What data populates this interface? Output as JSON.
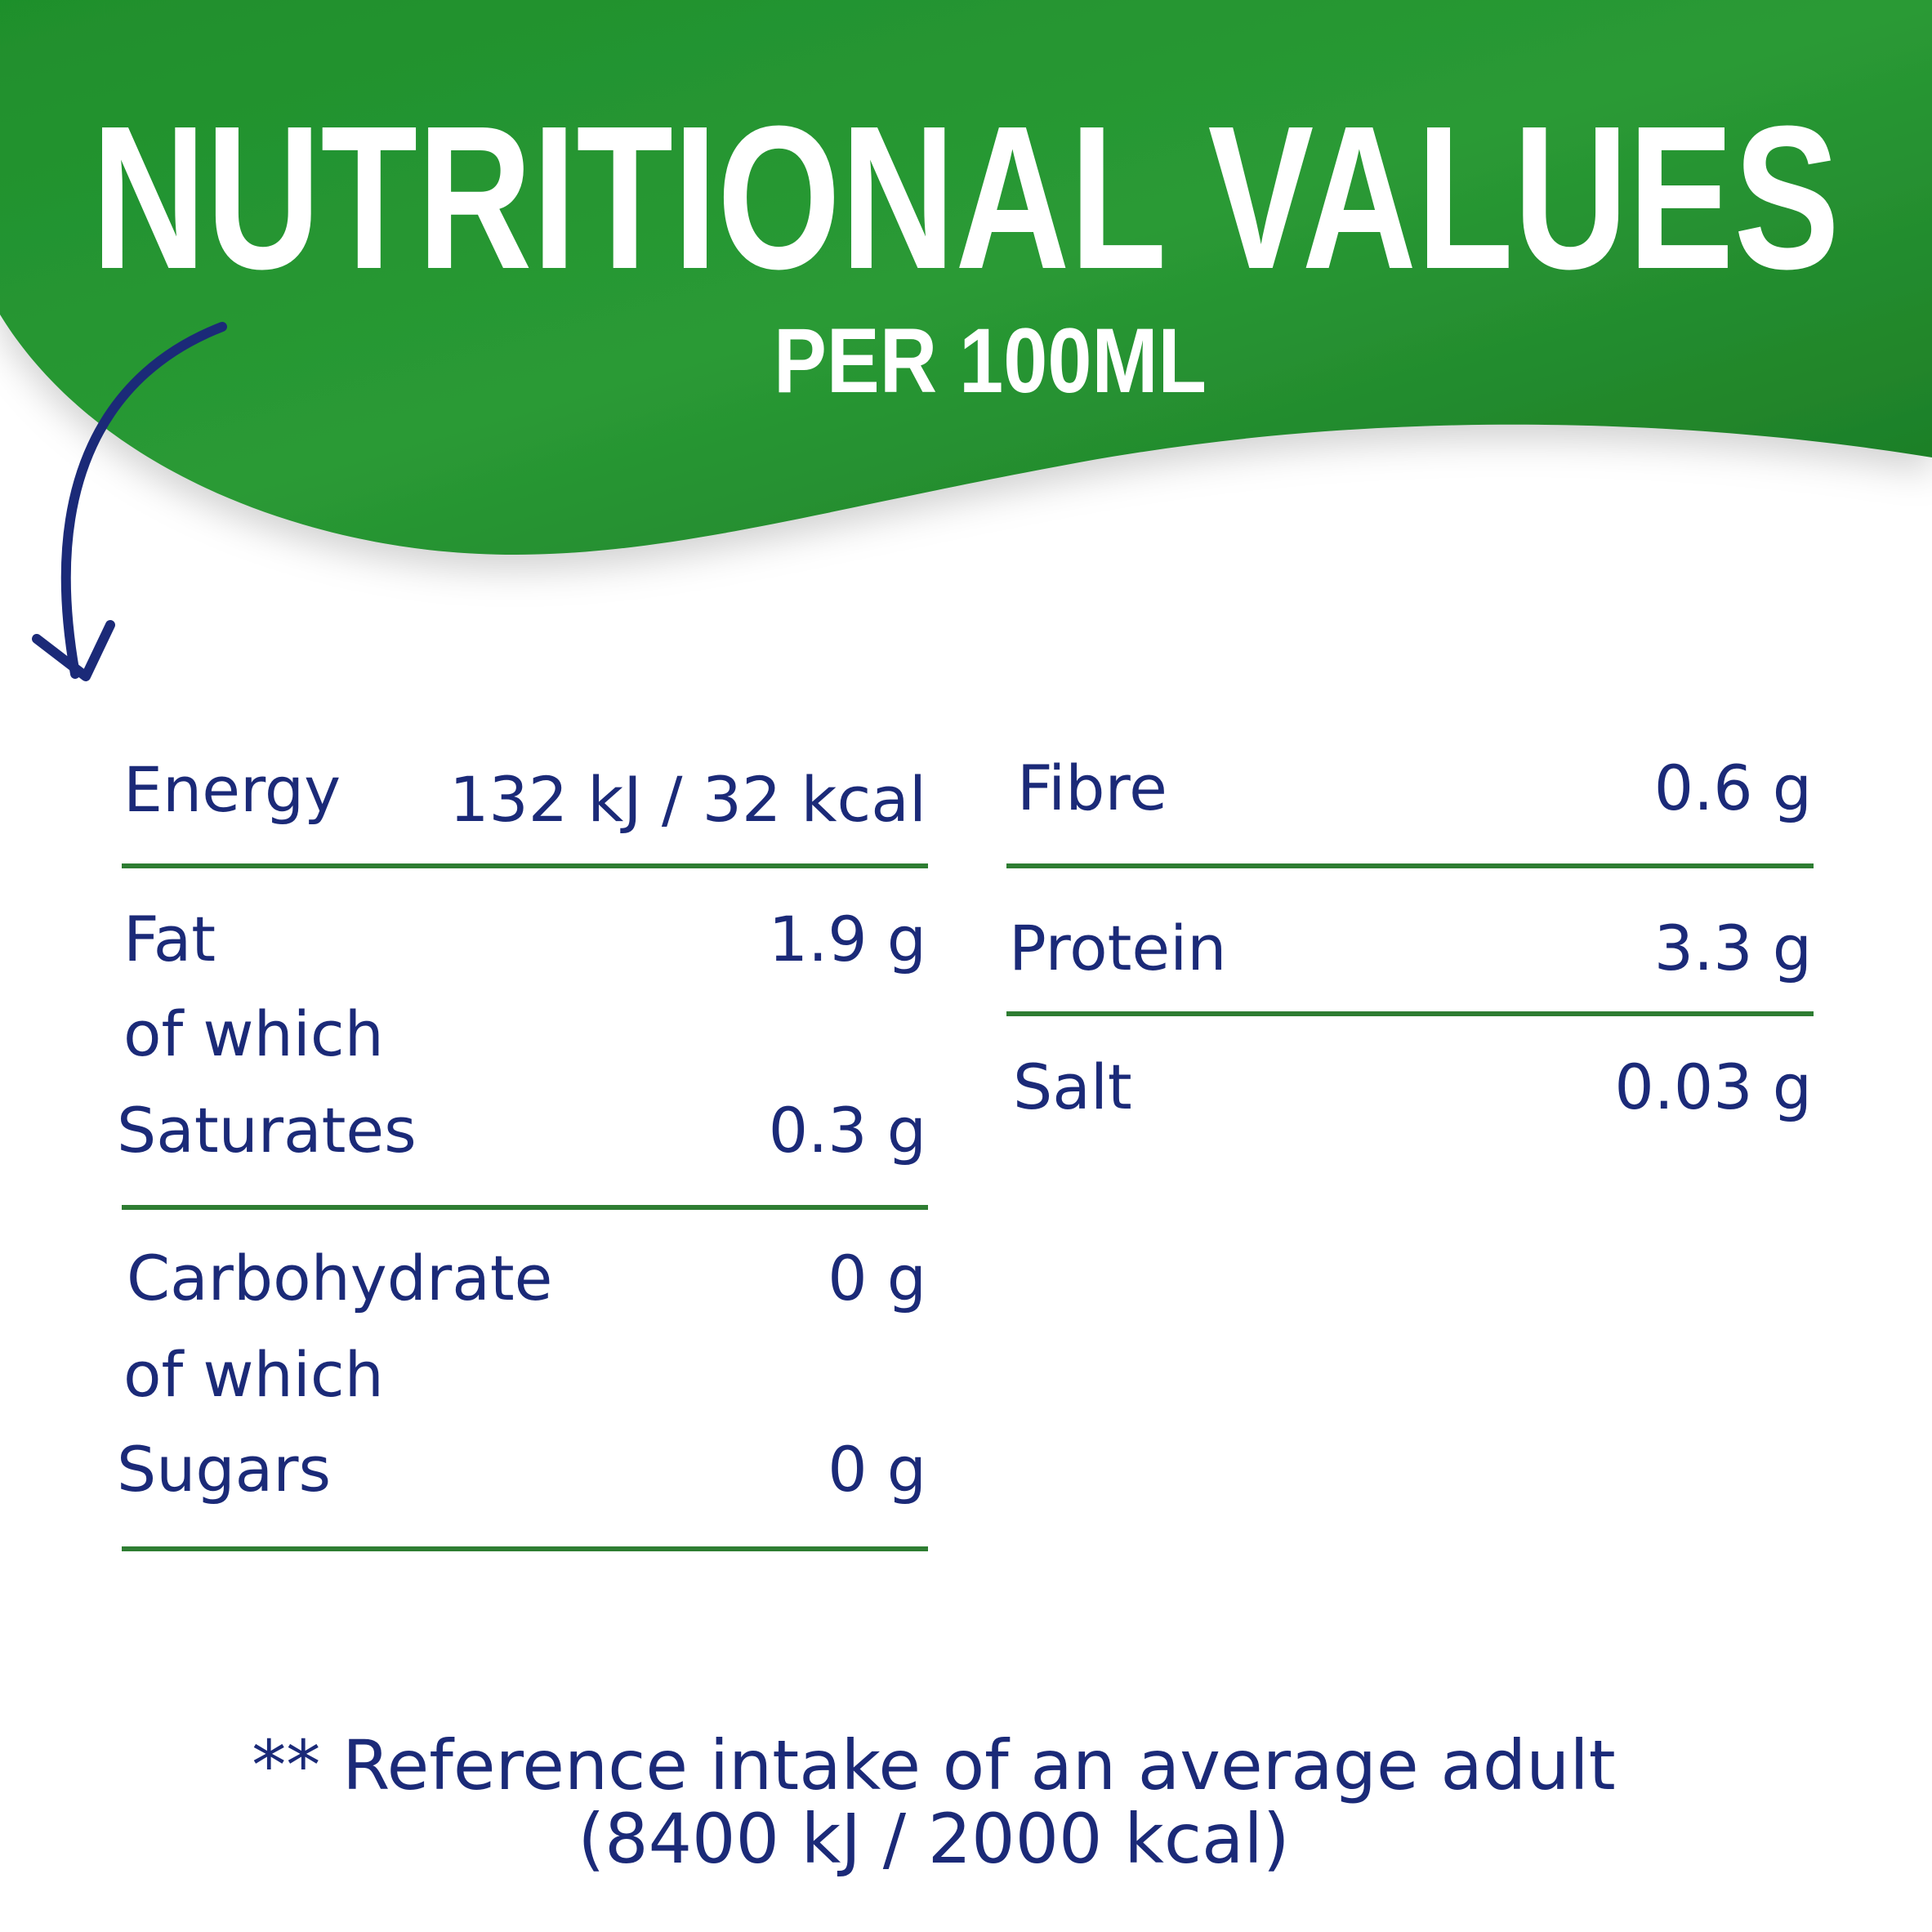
{
  "header": {
    "title": "NUTRITIONAL VALUES",
    "subtitle": "PER 100ML"
  },
  "left": [
    {
      "label": "Energy",
      "value": "132 kJ / 32 kcal"
    },
    {
      "label": "Fat",
      "value": "1.9 g"
    },
    {
      "label": "of which"
    },
    {
      "label": "Saturates",
      "value": "0.3 g"
    },
    {
      "label": "Carbohydrate",
      "value": "0 g"
    },
    {
      "label": "of which"
    },
    {
      "label": "Sugars",
      "value": "0 g"
    }
  ],
  "right": [
    {
      "label": "Fibre",
      "value": "0.6 g"
    },
    {
      "label": "Protein",
      "value": "3.3 g"
    },
    {
      "label": "Salt",
      "value": "0.03 g"
    }
  ],
  "footnote": [
    "** Reference intake of an average adult",
    "(8400 kJ / 2000 kcal)"
  ]
}
